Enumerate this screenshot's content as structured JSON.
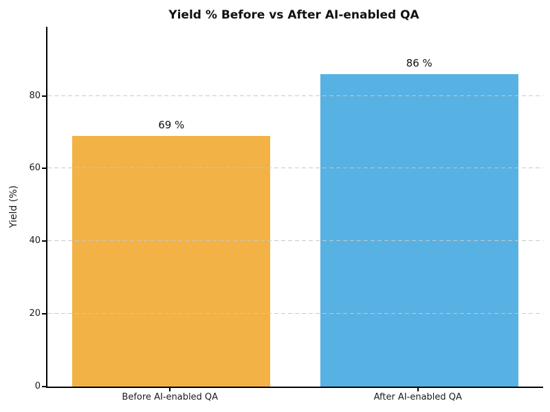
{
  "chart_data": {
    "type": "bar",
    "title": "Yield % Before vs After AI-enabled QA",
    "categories": [
      "Before AI-enabled QA",
      "After AI-enabled QA"
    ],
    "values": [
      69,
      86
    ],
    "value_labels": [
      "69 %",
      "86 %"
    ],
    "bar_colors": [
      "#F2B245",
      "#57B1E2"
    ],
    "xlabel": "",
    "ylabel": "Yield (%)",
    "ylim": [
      0,
      99
    ],
    "yticks": [
      0,
      20,
      40,
      60,
      80
    ],
    "legend": "none",
    "grid": {
      "axis": "y",
      "style": "dashed",
      "color": "#c8c8c8",
      "over_bars": true
    },
    "spine_color": "#000000",
    "text_color": "#1a1a1a",
    "background_color": "#ffffff"
  }
}
